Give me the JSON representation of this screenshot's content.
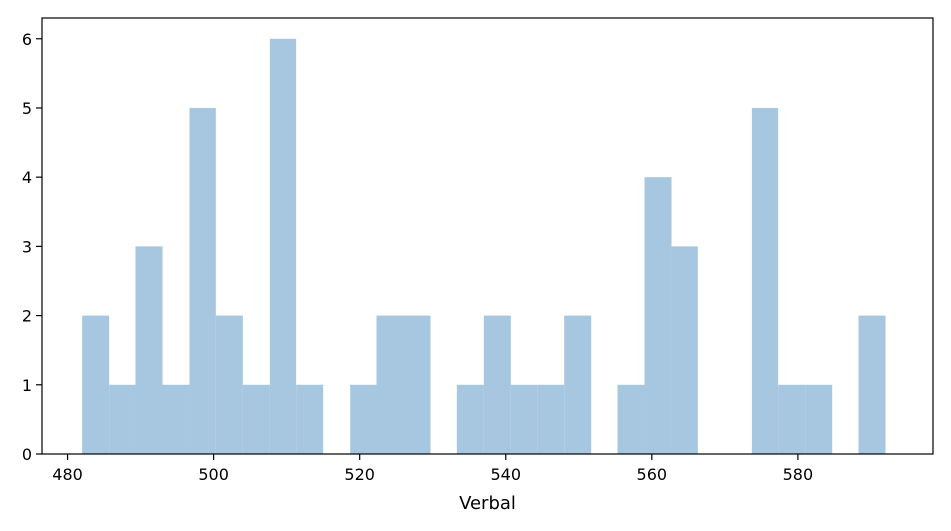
{
  "chart_data": {
    "type": "bar",
    "subtype": "histogram",
    "xlabel": "Verbal",
    "ylabel": "",
    "title": "",
    "xlim": [
      476.5,
      598.5
    ],
    "ylim": [
      0,
      6.3
    ],
    "xticks": [
      480,
      500,
      520,
      540,
      560,
      580
    ],
    "yticks": [
      0,
      1,
      2,
      3,
      4,
      5,
      6
    ],
    "bin_edges": [
      482.0,
      485.7,
      489.3,
      493.0,
      496.7,
      500.3,
      504.0,
      507.7,
      511.3,
      515.0,
      518.7,
      522.3,
      526.0,
      529.7,
      533.3,
      537.0,
      540.7,
      544.3,
      548.0,
      551.7,
      555.3,
      559.0,
      562.7,
      566.3,
      570.0,
      573.7,
      577.3,
      581.0,
      584.7,
      588.3,
      592.0
    ],
    "counts": [
      2,
      1,
      3,
      1,
      5,
      2,
      1,
      6,
      1,
      0,
      1,
      2,
      2,
      0,
      1,
      2,
      1,
      1,
      2,
      0,
      1,
      4,
      3,
      0,
      0,
      5,
      1,
      1,
      0,
      2
    ],
    "colors": {
      "bar": "#a6c7df",
      "axis": "#000000",
      "text": "#000000"
    }
  }
}
